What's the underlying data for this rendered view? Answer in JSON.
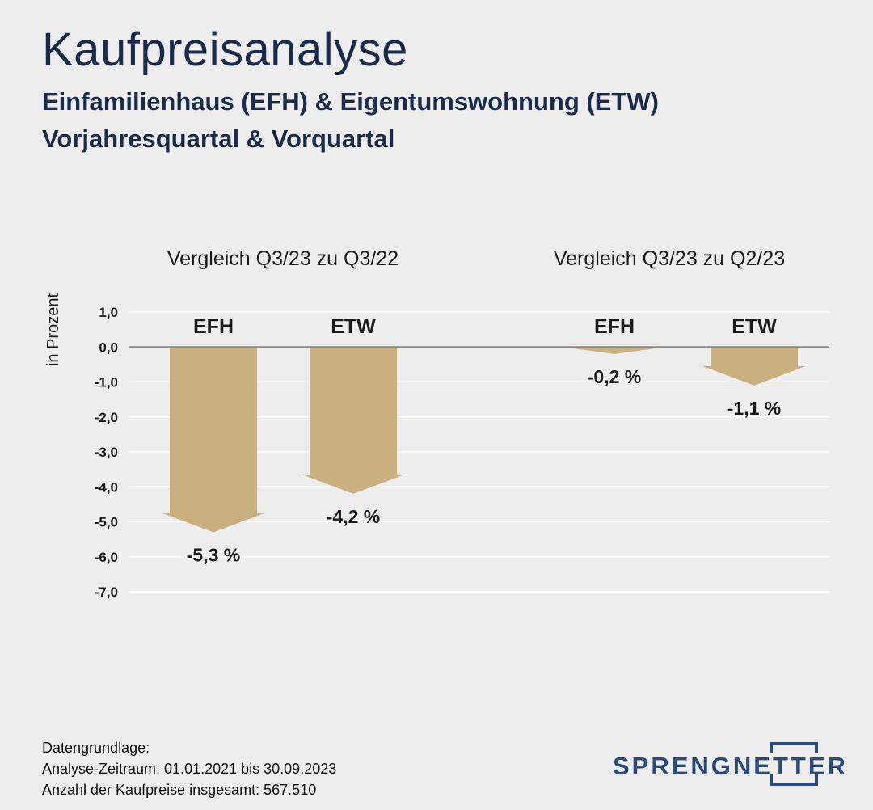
{
  "header": {
    "title": "Kaufpreisanalyse",
    "subtitle_line1": "Einfamilienhaus (EFH) & Eigentumswohnung (ETW)",
    "subtitle_line2": "Vorjahresquartal & Vorquartal"
  },
  "chart_data": {
    "type": "bar",
    "ylabel": "in Prozent",
    "ylim": [
      -7,
      1
    ],
    "yticks": [
      1,
      0,
      -1,
      -2,
      -3,
      -4,
      -5,
      -6,
      -7
    ],
    "ytick_labels": [
      "1,0",
      "0,0",
      "-1,0",
      "-2,0",
      "-3,0",
      "-4,0",
      "-5,0",
      "-6,0",
      "-7,0"
    ],
    "grid": true,
    "groups": [
      {
        "title": "Vergleich Q3/23 zu Q3/22",
        "bars": [
          {
            "category": "EFH",
            "value": -5.3,
            "label": "-5,3 %"
          },
          {
            "category": "ETW",
            "value": -4.2,
            "label": "-4,2 %"
          }
        ]
      },
      {
        "title": "Vergleich Q3/23 zu Q2/23",
        "bars": [
          {
            "category": "EFH",
            "value": -0.2,
            "label": "-0,2 %"
          },
          {
            "category": "ETW",
            "value": -1.1,
            "label": "-1,1 %"
          }
        ]
      }
    ],
    "colors": {
      "bar": "#cbb07f",
      "grid": "#ffffff",
      "zero_line": "#888888",
      "text": "#1a1a1a"
    }
  },
  "footer": {
    "line1": "Datengrundlage:",
    "line2": "Analyse-Zeitraum: 01.01.2021 bis 30.09.2023",
    "line3": "Anzahl der Kaufpreise insgesamt: 567.510"
  },
  "logo": {
    "text": "SPRENGNETTER",
    "color": "#2a4a7a"
  }
}
